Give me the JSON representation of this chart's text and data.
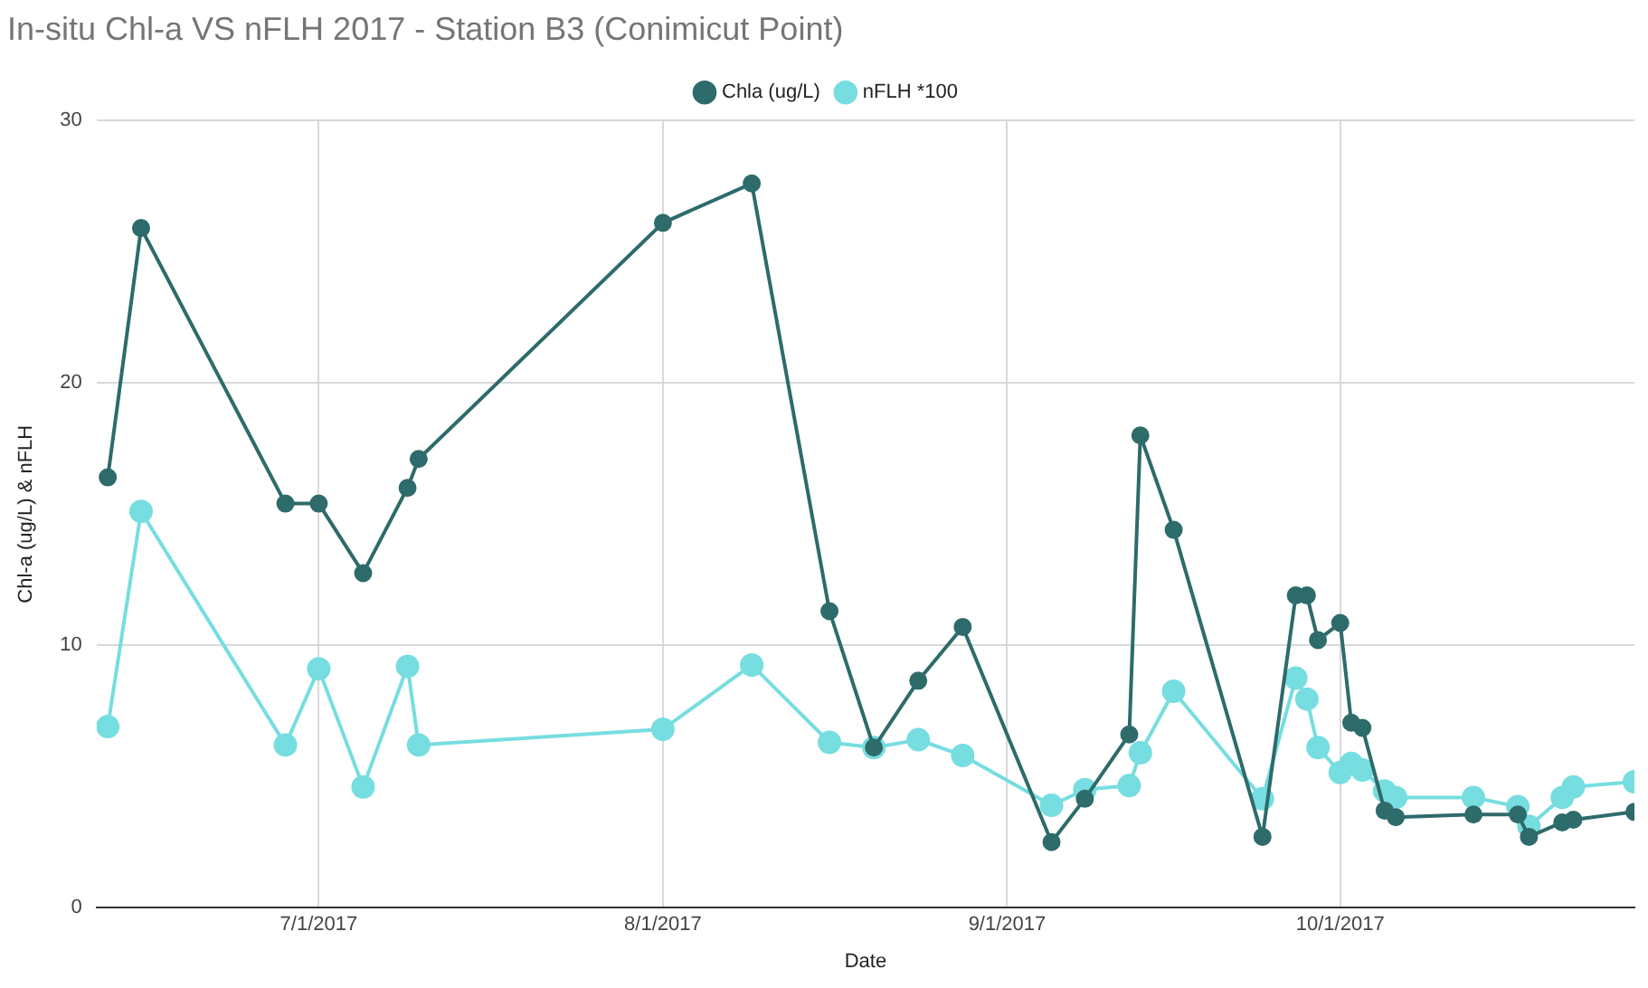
{
  "chart_data": {
    "type": "line",
    "title": "In-situ Chl-a VS nFLH 2017 - Station B3 (Conimicut Point)",
    "xlabel": "Date",
    "ylabel": "Chl-a (ug/L) & nFLH",
    "x": [
      "2017-06-12",
      "2017-06-15",
      "2017-06-28",
      "2017-07-01",
      "2017-07-05",
      "2017-07-09",
      "2017-07-10",
      "2017-08-01",
      "2017-08-09",
      "2017-08-16",
      "2017-08-20",
      "2017-08-24",
      "2017-08-28",
      "2017-09-05",
      "2017-09-08",
      "2017-09-12",
      "2017-09-13",
      "2017-09-16",
      "2017-09-24",
      "2017-09-27",
      "2017-09-28",
      "2017-09-29",
      "2017-10-01",
      "2017-10-02",
      "2017-10-03",
      "2017-10-05",
      "2017-10-06",
      "2017-10-13",
      "2017-10-17",
      "2017-10-18",
      "2017-10-21",
      "2017-10-22",
      "2017-10-27T12:00"
    ],
    "series": [
      {
        "name": "Chla (ug/L)",
        "color": "#2e6b6b",
        "values": [
          16.4,
          25.9,
          15.4,
          15.4,
          12.75,
          16.0,
          17.1,
          26.1,
          27.6,
          11.3,
          6.1,
          8.65,
          10.7,
          2.5,
          4.15,
          6.6,
          18.0,
          14.4,
          2.7,
          11.9,
          11.9,
          10.2,
          10.85,
          7.05,
          6.85,
          3.7,
          3.45,
          3.55,
          3.55,
          2.7,
          3.25,
          3.35,
          3.65
        ]
      },
      {
        "name": "nFLH *100",
        "color": "#76dde0",
        "values": [
          6.9,
          15.1,
          6.2,
          9.1,
          4.6,
          9.2,
          6.2,
          6.8,
          9.25,
          6.3,
          6.1,
          6.4,
          5.8,
          3.9,
          4.5,
          4.65,
          5.9,
          8.25,
          4.15,
          8.75,
          7.95,
          6.1,
          5.15,
          5.5,
          5.25,
          4.45,
          4.2,
          4.2,
          3.85,
          3.1,
          4.2,
          4.6,
          4.8
        ]
      }
    ],
    "xlim": [
      "2017-06-11",
      "2017-10-27T12:00"
    ],
    "xticks": [
      {
        "value": "2017-07-01",
        "label": "7/1/2017"
      },
      {
        "value": "2017-08-01",
        "label": "8/1/2017"
      },
      {
        "value": "2017-09-01",
        "label": "9/1/2017"
      },
      {
        "value": "2017-10-01",
        "label": "10/1/2017"
      }
    ],
    "ylim": [
      0,
      30
    ],
    "yticks": [
      0,
      10,
      20,
      30
    ],
    "grid": true,
    "legend": "top",
    "marker": "circle",
    "line_style": "solid"
  }
}
